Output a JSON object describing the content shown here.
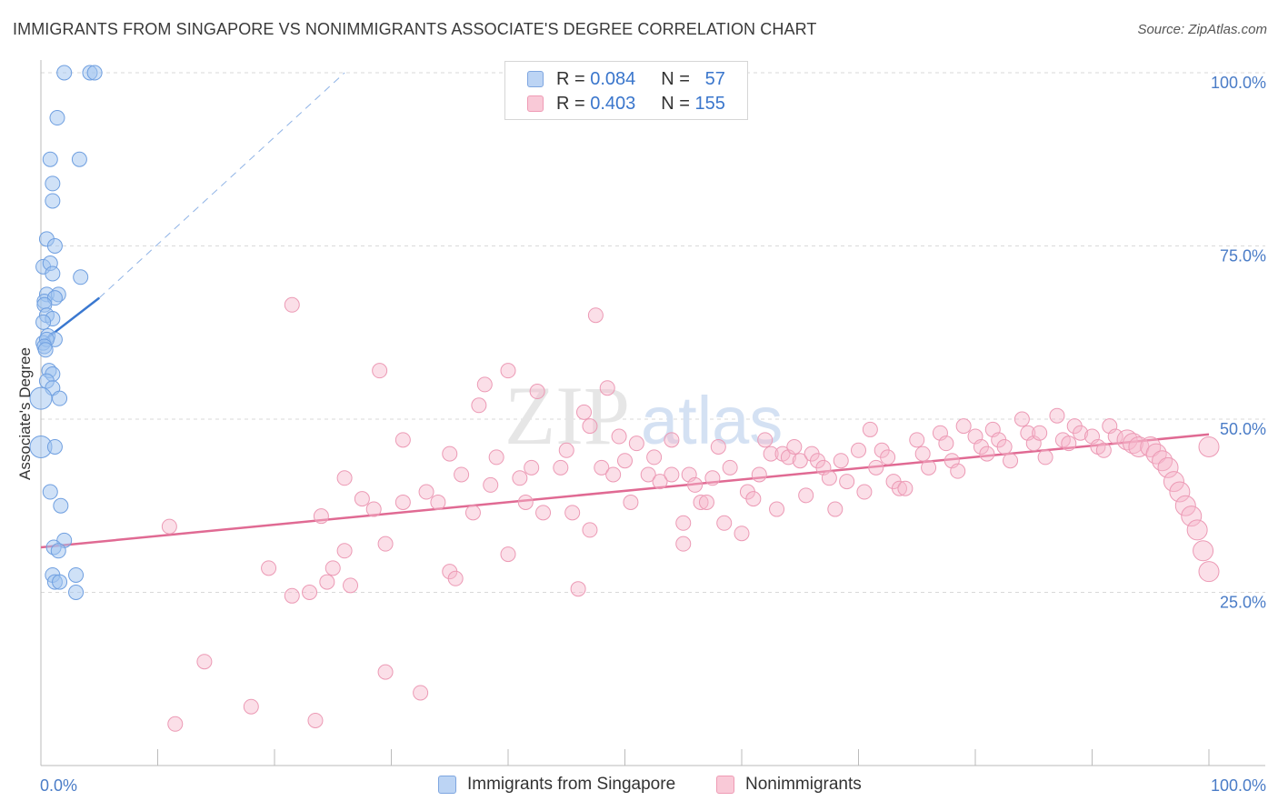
{
  "title": "IMMIGRANTS FROM SINGAPORE VS NONIMMIGRANTS ASSOCIATE'S DEGREE CORRELATION CHART",
  "source": "Source: ZipAtlas.com",
  "watermark": {
    "zip": "ZIP",
    "atlas": "atlas"
  },
  "legend": {
    "r_label": "R =",
    "n_label": "N =",
    "rows": [
      {
        "series": "Immigrants from Singapore",
        "r": "0.084",
        "n": "57",
        "color": "#7ea6e0"
      },
      {
        "series": "Nonimmigrants",
        "r": "0.403",
        "n": "155",
        "color": "#ef9bb5"
      }
    ]
  },
  "chart_data": {
    "type": "scatter",
    "title": "IMMIGRANTS FROM SINGAPORE VS NONIMMIGRANTS ASSOCIATE'S DEGREE CORRELATION CHART",
    "xlabel": "",
    "ylabel": "Associate's Degree",
    "xlim": [
      0,
      100
    ],
    "ylim": [
      0,
      100
    ],
    "x_tick_labels": [
      "0.0%",
      "100.0%"
    ],
    "y_tick_labels": [
      "25.0%",
      "50.0%",
      "75.0%",
      "100.0%"
    ],
    "y_ticks": [
      25,
      50,
      75,
      100
    ],
    "grid": "horizontal dashed",
    "legend_position": "top-center",
    "series": [
      {
        "name": "Immigrants from Singapore",
        "color": "#6f9fe0",
        "trend": {
          "x": [
            0,
            5
          ],
          "y": [
            61,
            67.5
          ],
          "extended_to": [
            26,
            100
          ]
        },
        "points": [
          [
            2,
            100
          ],
          [
            4.2,
            100
          ],
          [
            4.6,
            100
          ],
          [
            1.4,
            93.5
          ],
          [
            0.8,
            87.5
          ],
          [
            3.3,
            87.5
          ],
          [
            1,
            84
          ],
          [
            1,
            81.5
          ],
          [
            0.5,
            76
          ],
          [
            1.2,
            75
          ],
          [
            0.2,
            72
          ],
          [
            0.8,
            72.5
          ],
          [
            1,
            71
          ],
          [
            3.4,
            70.5
          ],
          [
            0.5,
            68
          ],
          [
            1.5,
            68
          ],
          [
            0.3,
            67
          ],
          [
            1.2,
            67.5
          ],
          [
            0.3,
            66.5
          ],
          [
            0.5,
            65
          ],
          [
            1,
            64.5
          ],
          [
            0.2,
            64
          ],
          [
            0.6,
            62
          ],
          [
            1.2,
            61.5
          ],
          [
            0.2,
            61
          ],
          [
            0.5,
            61.5
          ],
          [
            0.3,
            60.5
          ],
          [
            0.4,
            60
          ],
          [
            0.7,
            57
          ],
          [
            1,
            56.5
          ],
          [
            0.5,
            55.5
          ],
          [
            1,
            54.5
          ],
          [
            1.6,
            53
          ],
          [
            0,
            53
          ],
          [
            0,
            46
          ],
          [
            1.2,
            46
          ],
          [
            0.8,
            39.5
          ],
          [
            1.7,
            37.5
          ],
          [
            2,
            32.5
          ],
          [
            1.1,
            31.5
          ],
          [
            1.5,
            31
          ],
          [
            1,
            27.5
          ],
          [
            3,
            27.5
          ],
          [
            1.2,
            26.5
          ],
          [
            1.6,
            26.5
          ],
          [
            3,
            25
          ]
        ]
      },
      {
        "name": "Nonimmigrants",
        "color": "#ec8fae",
        "trend": {
          "x": [
            0,
            100
          ],
          "y": [
            31.5,
            47.8
          ]
        },
        "points": [
          [
            11.5,
            6
          ],
          [
            18,
            8.5
          ],
          [
            14,
            15
          ],
          [
            23.5,
            6.5
          ],
          [
            29.5,
            13.5
          ],
          [
            32.5,
            10.5
          ],
          [
            11,
            34.5
          ],
          [
            19.5,
            28.5
          ],
          [
            21.5,
            24.5
          ],
          [
            24,
            36
          ],
          [
            25,
            28.5
          ],
          [
            26,
            31
          ],
          [
            24.5,
            26.5
          ],
          [
            23,
            25
          ],
          [
            26.5,
            26
          ],
          [
            27.5,
            38.5
          ],
          [
            28.5,
            37
          ],
          [
            29.5,
            32
          ],
          [
            26,
            41.5
          ],
          [
            31,
            38
          ],
          [
            29,
            57
          ],
          [
            21.5,
            66.5
          ],
          [
            31,
            47
          ],
          [
            33,
            39.5
          ],
          [
            34,
            38
          ],
          [
            35,
            45
          ],
          [
            35,
            28
          ],
          [
            35.5,
            27
          ],
          [
            36,
            42
          ],
          [
            37,
            36.5
          ],
          [
            37.5,
            52
          ],
          [
            38,
            55
          ],
          [
            38.5,
            40.5
          ],
          [
            39,
            44.5
          ],
          [
            40,
            57
          ],
          [
            40,
            30.5
          ],
          [
            41,
            41.5
          ],
          [
            41.5,
            38
          ],
          [
            42,
            43
          ],
          [
            42.5,
            54
          ],
          [
            43,
            36.5
          ],
          [
            44.5,
            43
          ],
          [
            45,
            45.5
          ],
          [
            45.5,
            36.5
          ],
          [
            46,
            25.5
          ],
          [
            46.5,
            51
          ],
          [
            47,
            49
          ],
          [
            47,
            34
          ],
          [
            47.5,
            65
          ],
          [
            48,
            43
          ],
          [
            48.5,
            54.5
          ],
          [
            49,
            42
          ],
          [
            49.5,
            47.5
          ],
          [
            50,
            44
          ],
          [
            50.5,
            38
          ],
          [
            51,
            46.5
          ],
          [
            52,
            42
          ],
          [
            52.5,
            44.5
          ],
          [
            53,
            41
          ],
          [
            54,
            42
          ],
          [
            54,
            47
          ],
          [
            55,
            35
          ],
          [
            55.5,
            42
          ],
          [
            55,
            32
          ],
          [
            56,
            40.5
          ],
          [
            56.5,
            38
          ],
          [
            57,
            38
          ],
          [
            57.5,
            41.5
          ],
          [
            58,
            46
          ],
          [
            58.5,
            35
          ],
          [
            59,
            43
          ],
          [
            60,
            33.5
          ],
          [
            60.5,
            39.5
          ],
          [
            61,
            38.5
          ],
          [
            61.5,
            42
          ],
          [
            62,
            47
          ],
          [
            62.5,
            45
          ],
          [
            63,
            37
          ],
          [
            63.5,
            45
          ],
          [
            64,
            44.5
          ],
          [
            64.5,
            46
          ],
          [
            65,
            44
          ],
          [
            65.5,
            39
          ],
          [
            66,
            45
          ],
          [
            66.5,
            44
          ],
          [
            67,
            43
          ],
          [
            67.5,
            41.5
          ],
          [
            68,
            37
          ],
          [
            68.5,
            44
          ],
          [
            69,
            41
          ],
          [
            70,
            45.5
          ],
          [
            70.5,
            39.5
          ],
          [
            71,
            48.5
          ],
          [
            71.5,
            43
          ],
          [
            72,
            45.5
          ],
          [
            72.5,
            44.5
          ],
          [
            73,
            41
          ],
          [
            73.5,
            40
          ],
          [
            74,
            40
          ],
          [
            75,
            47
          ],
          [
            75.5,
            45
          ],
          [
            76,
            43
          ],
          [
            77,
            48
          ],
          [
            77.5,
            46.5
          ],
          [
            78,
            44
          ],
          [
            78.5,
            42.5
          ],
          [
            79,
            49
          ],
          [
            80,
            47.5
          ],
          [
            80.5,
            46
          ],
          [
            81,
            45
          ],
          [
            81.5,
            48.5
          ],
          [
            82,
            47
          ],
          [
            82.5,
            46
          ],
          [
            83,
            44
          ],
          [
            84,
            50
          ],
          [
            84.5,
            48
          ],
          [
            85,
            46.5
          ],
          [
            85.5,
            48
          ],
          [
            86,
            44.5
          ],
          [
            87,
            50.5
          ],
          [
            87.5,
            47
          ],
          [
            88,
            46.5
          ],
          [
            88.5,
            49
          ],
          [
            89,
            48
          ],
          [
            90,
            47.5
          ],
          [
            90.5,
            46
          ],
          [
            91,
            45.5
          ],
          [
            91.5,
            49
          ],
          [
            92,
            47.5
          ],
          [
            93,
            47
          ],
          [
            93.5,
            46.5
          ],
          [
            94,
            46
          ],
          [
            95,
            46
          ],
          [
            95.5,
            45
          ],
          [
            96,
            44
          ],
          [
            96.5,
            43
          ],
          [
            97,
            41
          ],
          [
            97.5,
            39.5
          ],
          [
            98,
            37.5
          ],
          [
            98.5,
            36
          ],
          [
            99,
            34
          ],
          [
            99.5,
            31
          ],
          [
            100,
            28
          ],
          [
            100,
            46
          ]
        ]
      }
    ]
  }
}
